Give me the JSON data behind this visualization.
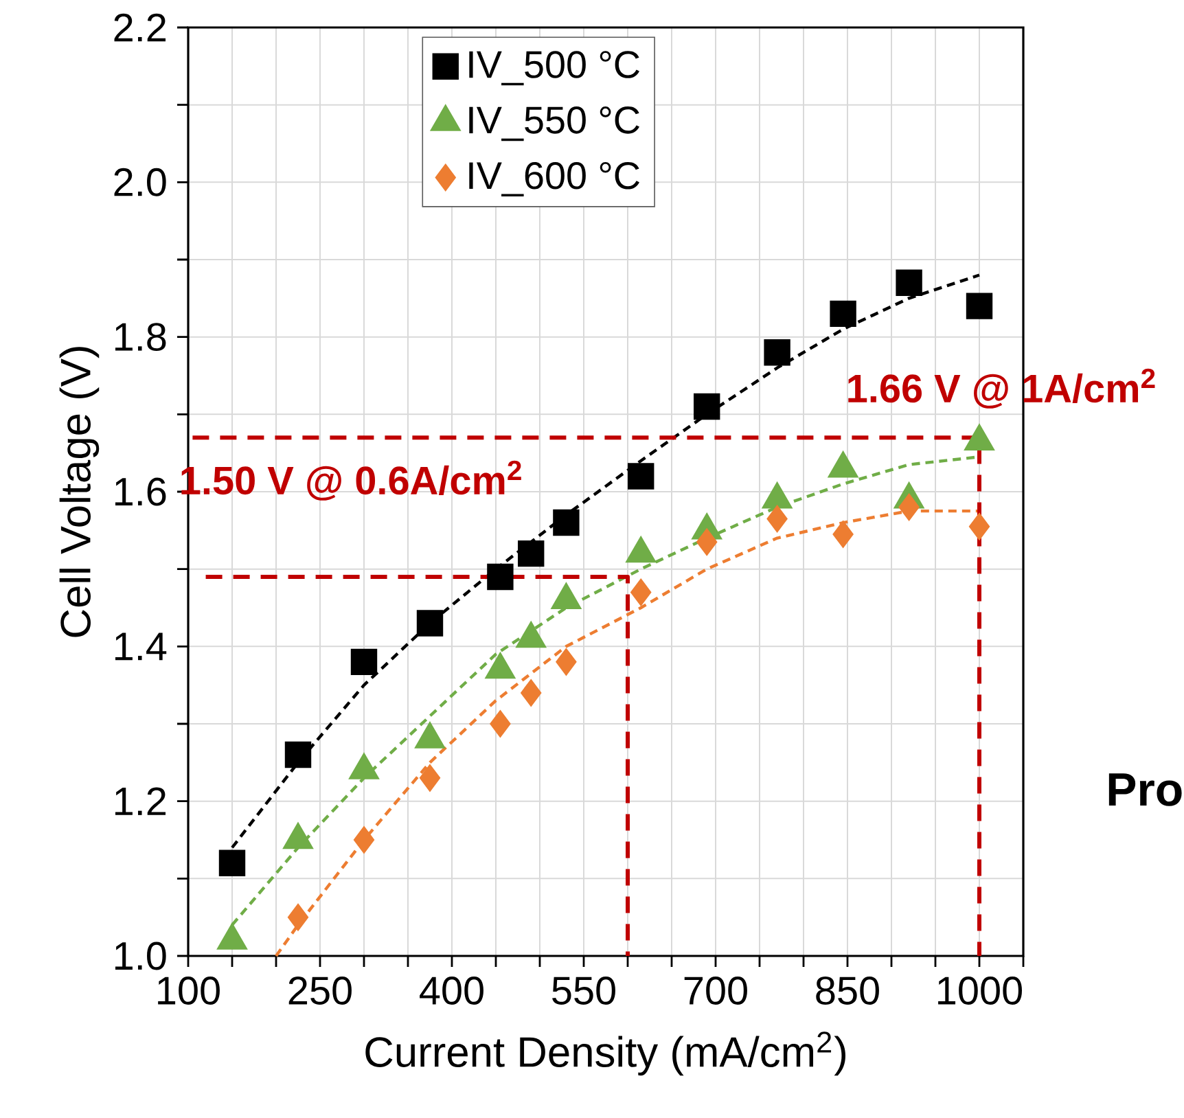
{
  "chart_data": {
    "type": "scatter",
    "xlabel": "Current Density (mA/cm$^{2}$)",
    "ylabel": "Cell Voltage (V)",
    "xlim": [
      100,
      1050
    ],
    "ylim": [
      1.0,
      2.2
    ],
    "xticks": [
      100,
      {
        "value": 150,
        "label": null
      },
      {
        "value": 200,
        "label": null
      },
      250,
      {
        "value": 300,
        "label": null
      },
      {
        "value": 350,
        "label": null
      },
      400,
      {
        "value": 450,
        "label": null
      },
      {
        "value": 500,
        "label": null
      },
      550,
      {
        "value": 600,
        "label": null
      },
      {
        "value": 650,
        "label": null
      },
      700,
      {
        "value": 750,
        "label": null
      },
      {
        "value": 800,
        "label": null
      },
      850,
      {
        "value": 900,
        "label": null
      },
      {
        "value": 950,
        "label": null
      },
      1000,
      {
        "value": 1050,
        "label": null
      }
    ],
    "yticks": [
      {
        "value": 1.0,
        "label": "1.0"
      },
      {
        "value": 1.1,
        "label": null
      },
      1.2,
      {
        "value": 1.3,
        "label": null
      },
      1.4,
      {
        "value": 1.5,
        "label": null
      },
      1.6,
      {
        "value": 1.7,
        "label": null
      },
      1.8,
      {
        "value": 1.9,
        "label": null
      },
      {
        "value": 2.0,
        "label": "2.0"
      },
      {
        "value": 2.1,
        "label": null
      },
      2.2
    ],
    "grid": true,
    "legend": "top left",
    "series": [
      {
        "type": "line",
        "color": "#000000",
        "marker": "none",
        "line_style": "dashed",
        "x": [
          150,
          225,
          300,
          375,
          450,
          530,
          615,
          690,
          770,
          845,
          920,
          1000
        ],
        "values": [
          1.14,
          1.25,
          1.35,
          1.43,
          1.5,
          1.57,
          1.64,
          1.7,
          1.76,
          1.81,
          1.85,
          1.88
        ]
      },
      {
        "type": "line",
        "color": "#70ad47",
        "marker": "none",
        "line_style": "dashed",
        "x": [
          150,
          225,
          300,
          375,
          450,
          530,
          615,
          690,
          770,
          845,
          920,
          1000
        ],
        "values": [
          1.04,
          1.14,
          1.23,
          1.31,
          1.39,
          1.45,
          1.5,
          1.54,
          1.58,
          1.61,
          1.635,
          1.645
        ]
      },
      {
        "type": "line",
        "color": "#ed7d31",
        "marker": "none",
        "line_style": "dashed",
        "x": [
          200,
          225,
          300,
          375,
          450,
          530,
          615,
          690,
          770,
          845,
          920,
          1000
        ],
        "values": [
          1.0,
          1.04,
          1.15,
          1.25,
          1.33,
          1.4,
          1.45,
          1.5,
          1.54,
          1.56,
          1.575,
          1.575
        ]
      },
      {
        "type": "line",
        "color": "#c00000",
        "marker": "none",
        "line_style": "dashed",
        "x": [
          120,
          600,
          600
        ],
        "values": [
          1.49,
          1.49,
          1.0
        ]
      },
      {
        "type": "line",
        "color": "#c00000",
        "marker": "none",
        "line_style": "dashed",
        "x": [
          105,
          1000,
          1000
        ],
        "values": [
          1.67,
          1.67,
          1.0
        ]
      },
      {
        "name": "IV_500 °C",
        "color": "#000000",
        "marker": "square",
        "x": [
          150,
          225,
          300,
          375,
          455,
          490,
          530,
          615,
          690,
          770,
          845,
          920,
          1000
        ],
        "values": [
          1.12,
          1.26,
          1.38,
          1.43,
          1.49,
          1.52,
          1.56,
          1.62,
          1.71,
          1.78,
          1.83,
          1.87,
          1.84
        ]
      },
      {
        "name": "IV_550 °C",
        "color": "#70ad47",
        "marker": "triangle",
        "x": [
          150,
          225,
          300,
          375,
          455,
          490,
          530,
          615,
          690,
          770,
          845,
          920,
          1000
        ],
        "values": [
          1.02,
          1.15,
          1.24,
          1.28,
          1.37,
          1.41,
          1.46,
          1.52,
          1.55,
          1.59,
          1.63,
          1.59,
          1.665
        ]
      },
      {
        "name": "IV_600 °C",
        "color": "#ed7d31",
        "marker": "diamond",
        "x": [
          225,
          300,
          375,
          455,
          490,
          530,
          615,
          690,
          770,
          845,
          920,
          1000
        ],
        "values": [
          1.05,
          1.15,
          1.23,
          1.3,
          1.34,
          1.38,
          1.47,
          1.535,
          1.565,
          1.545,
          1.58,
          1.555
        ]
      }
    ],
    "annotations": [
      "1.50 V @ 0.6A/cm$^{2}$",
      "1.66 V @ 1A/cm$^{2}$",
      "Pro"
    ]
  }
}
